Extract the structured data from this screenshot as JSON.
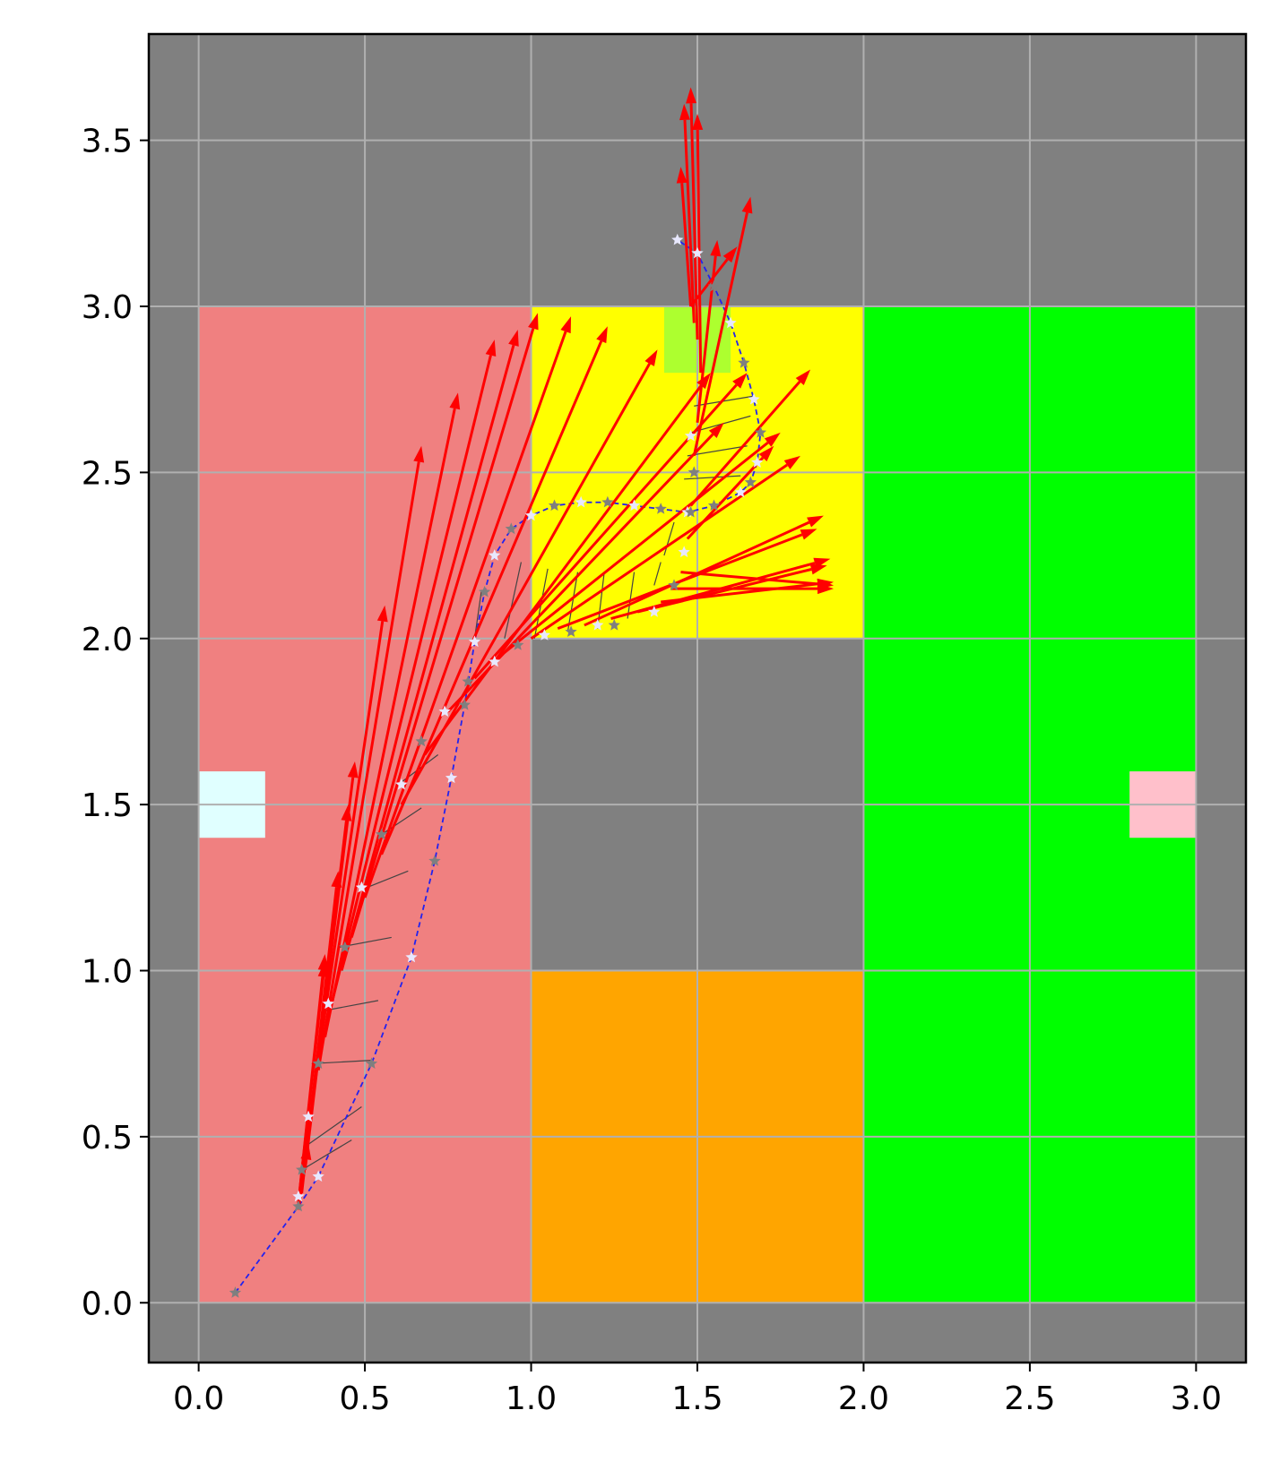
{
  "chart_data": {
    "type": "scatter",
    "title": "",
    "xlabel": "",
    "ylabel": "",
    "xlim": [
      -0.15,
      3.15
    ],
    "ylim": [
      -0.18,
      3.82
    ],
    "xticks": [
      0.0,
      0.5,
      1.0,
      1.5,
      2.0,
      2.5,
      3.0
    ],
    "yticks": [
      0.0,
      0.5,
      1.0,
      1.5,
      2.0,
      2.5,
      3.0,
      3.5
    ],
    "xtick_labels": [
      "0.0",
      "0.5",
      "1.0",
      "1.5",
      "2.0",
      "2.5",
      "3.0"
    ],
    "ytick_labels": [
      "0.0",
      "0.5",
      "1.0",
      "1.5",
      "2.0",
      "2.5",
      "3.0",
      "3.5"
    ],
    "grid": true,
    "legend": "none",
    "colors": {
      "background": "#808080",
      "grid": "#b0b0b0",
      "path": "#2222ee",
      "arrows": "#ff0000",
      "point_gray": "#7f7f7f",
      "point_white": "#e8e8ff",
      "thin_lines": "#444444"
    },
    "regions": [
      {
        "name": "left-room",
        "x": [
          0.0,
          1.0
        ],
        "y": [
          0.0,
          3.0
        ],
        "color": "#f08080"
      },
      {
        "name": "top-middle-room",
        "x": [
          1.0,
          2.0
        ],
        "y": [
          2.0,
          3.0
        ],
        "color": "#ffff00"
      },
      {
        "name": "center-block",
        "x": [
          1.0,
          2.0
        ],
        "y": [
          1.0,
          2.0
        ],
        "color": "#808080"
      },
      {
        "name": "bottom-middle-room",
        "x": [
          1.0,
          2.0
        ],
        "y": [
          0.0,
          1.0
        ],
        "color": "#ffa500"
      },
      {
        "name": "right-room",
        "x": [
          2.0,
          3.0
        ],
        "y": [
          0.0,
          3.0
        ],
        "color": "#00ff00"
      },
      {
        "name": "cyan-marker",
        "x": [
          0.0,
          0.2
        ],
        "y": [
          1.4,
          1.6
        ],
        "color": "#e0ffff"
      },
      {
        "name": "pink-marker",
        "x": [
          2.8,
          3.0
        ],
        "y": [
          1.4,
          1.6
        ],
        "color": "#ffc0cb"
      },
      {
        "name": "goal-marker",
        "x": [
          1.4,
          1.6
        ],
        "y": [
          2.8,
          3.0
        ],
        "color": "#adff2f"
      }
    ],
    "path_points": [
      [
        0.11,
        0.03,
        "gray"
      ],
      [
        0.3,
        0.29,
        "gray"
      ],
      [
        0.36,
        0.38,
        "white"
      ],
      [
        0.52,
        0.72,
        "gray"
      ],
      [
        0.64,
        1.04,
        "white"
      ],
      [
        0.71,
        1.33,
        "gray"
      ],
      [
        0.76,
        1.58,
        "white"
      ],
      [
        0.8,
        1.8,
        "gray"
      ],
      [
        0.83,
        1.99,
        "white"
      ],
      [
        0.86,
        2.14,
        "gray"
      ],
      [
        0.89,
        2.25,
        "white"
      ],
      [
        0.94,
        2.33,
        "gray"
      ],
      [
        1.0,
        2.37,
        "white"
      ],
      [
        1.07,
        2.4,
        "gray"
      ],
      [
        1.15,
        2.41,
        "white"
      ],
      [
        1.23,
        2.41,
        "gray"
      ],
      [
        1.31,
        2.4,
        "white"
      ],
      [
        1.39,
        2.39,
        "gray"
      ],
      [
        1.47,
        2.38,
        "white"
      ],
      [
        1.55,
        2.4,
        "gray"
      ],
      [
        1.63,
        2.44,
        "white"
      ],
      [
        1.66,
        2.47,
        "gray"
      ],
      [
        1.68,
        2.53,
        "white"
      ],
      [
        1.69,
        2.62,
        "gray"
      ],
      [
        1.67,
        2.72,
        "white"
      ],
      [
        1.64,
        2.83,
        "gray"
      ],
      [
        1.6,
        2.95,
        "white"
      ],
      [
        1.55,
        3.06,
        "gray"
      ],
      [
        1.5,
        3.16,
        "white"
      ],
      [
        1.44,
        3.2,
        "white"
      ]
    ],
    "inner_points": [
      [
        0.3,
        0.32,
        "white"
      ],
      [
        0.31,
        0.4,
        "gray"
      ],
      [
        0.33,
        0.56,
        "white"
      ],
      [
        0.36,
        0.72,
        "gray"
      ],
      [
        0.39,
        0.9,
        "white"
      ],
      [
        0.44,
        1.07,
        "gray"
      ],
      [
        0.49,
        1.25,
        "white"
      ],
      [
        0.55,
        1.41,
        "gray"
      ],
      [
        0.61,
        1.56,
        "white"
      ],
      [
        0.67,
        1.69,
        "gray"
      ],
      [
        0.74,
        1.78,
        "white"
      ],
      [
        0.81,
        1.87,
        "gray"
      ],
      [
        0.89,
        1.93,
        "white"
      ],
      [
        0.96,
        1.98,
        "gray"
      ],
      [
        1.04,
        2.01,
        "white"
      ],
      [
        1.12,
        2.02,
        "gray"
      ],
      [
        1.2,
        2.04,
        "white"
      ],
      [
        1.25,
        2.04,
        "gray"
      ],
      [
        1.37,
        2.08,
        "white"
      ],
      [
        1.43,
        2.16,
        "gray"
      ],
      [
        1.46,
        2.26,
        "white"
      ],
      [
        1.48,
        2.38,
        "gray"
      ],
      [
        1.49,
        2.5,
        "gray"
      ],
      [
        1.48,
        2.61,
        "white"
      ]
    ],
    "arrows": [
      [
        0.3,
        0.28,
        0.33,
        0.48
      ],
      [
        0.3,
        0.3,
        0.38,
        1.05
      ],
      [
        0.3,
        0.3,
        0.38,
        1.03
      ],
      [
        0.31,
        0.33,
        0.42,
        1.3
      ],
      [
        0.32,
        0.4,
        0.45,
        1.5
      ],
      [
        0.33,
        0.5,
        0.47,
        1.63
      ],
      [
        0.34,
        0.6,
        0.56,
        2.1
      ],
      [
        0.36,
        0.7,
        0.67,
        2.58
      ],
      [
        0.38,
        0.8,
        0.78,
        2.74
      ],
      [
        0.4,
        0.9,
        0.89,
        2.9
      ],
      [
        0.43,
        1.0,
        0.96,
        2.93
      ],
      [
        0.46,
        1.1,
        1.02,
        2.98
      ],
      [
        0.5,
        1.22,
        1.12,
        2.97
      ],
      [
        0.55,
        1.35,
        1.23,
        2.94
      ],
      [
        0.61,
        1.5,
        1.38,
        2.87
      ],
      [
        0.68,
        1.65,
        1.54,
        2.8
      ],
      [
        0.75,
        1.78,
        1.58,
        2.65
      ],
      [
        0.83,
        1.88,
        1.65,
        2.8
      ],
      [
        0.91,
        1.95,
        1.75,
        2.62
      ],
      [
        1.0,
        2.0,
        1.81,
        2.55
      ],
      [
        1.08,
        2.03,
        1.86,
        2.33
      ],
      [
        1.16,
        2.04,
        1.88,
        2.37
      ],
      [
        1.24,
        2.06,
        1.9,
        2.24
      ],
      [
        1.32,
        2.08,
        1.89,
        2.22
      ],
      [
        1.39,
        2.11,
        1.91,
        2.17
      ],
      [
        1.42,
        2.15,
        1.91,
        2.15
      ],
      [
        1.45,
        2.2,
        1.91,
        2.16
      ],
      [
        1.47,
        2.3,
        1.73,
        2.58
      ],
      [
        1.48,
        2.4,
        1.84,
        2.81
      ],
      [
        1.49,
        2.55,
        1.66,
        3.33
      ],
      [
        1.5,
        2.65,
        1.56,
        3.2
      ],
      [
        1.51,
        2.8,
        1.5,
        3.58
      ],
      [
        1.5,
        2.9,
        1.48,
        3.66
      ],
      [
        1.49,
        2.95,
        1.46,
        3.61
      ],
      [
        1.48,
        3.0,
        1.45,
        3.42
      ],
      [
        1.48,
        3.0,
        1.62,
        3.18
      ]
    ],
    "thin_lines": [
      [
        0.31,
        0.4,
        0.46,
        0.49
      ],
      [
        0.32,
        0.47,
        0.49,
        0.59
      ],
      [
        0.34,
        0.72,
        0.52,
        0.73
      ],
      [
        0.38,
        0.88,
        0.54,
        0.91
      ],
      [
        0.42,
        1.07,
        0.58,
        1.1
      ],
      [
        0.48,
        1.24,
        0.63,
        1.3
      ],
      [
        0.55,
        1.41,
        0.67,
        1.49
      ],
      [
        0.6,
        1.56,
        0.72,
        1.65
      ],
      [
        0.85,
        2.14,
        0.83,
        2.0
      ],
      [
        0.97,
        2.23,
        0.92,
        2.0
      ],
      [
        1.05,
        2.21,
        1.01,
        2.0
      ],
      [
        1.14,
        2.2,
        1.11,
        2.02
      ],
      [
        1.22,
        2.2,
        1.2,
        2.03
      ],
      [
        1.31,
        2.2,
        1.29,
        2.06
      ],
      [
        1.37,
        2.16,
        1.39,
        2.23
      ],
      [
        1.4,
        2.25,
        1.43,
        2.35
      ],
      [
        1.46,
        2.48,
        1.63,
        2.49
      ],
      [
        1.47,
        2.55,
        1.65,
        2.58
      ],
      [
        1.48,
        2.62,
        1.66,
        2.67
      ],
      [
        1.49,
        2.7,
        1.67,
        2.73
      ]
    ]
  }
}
